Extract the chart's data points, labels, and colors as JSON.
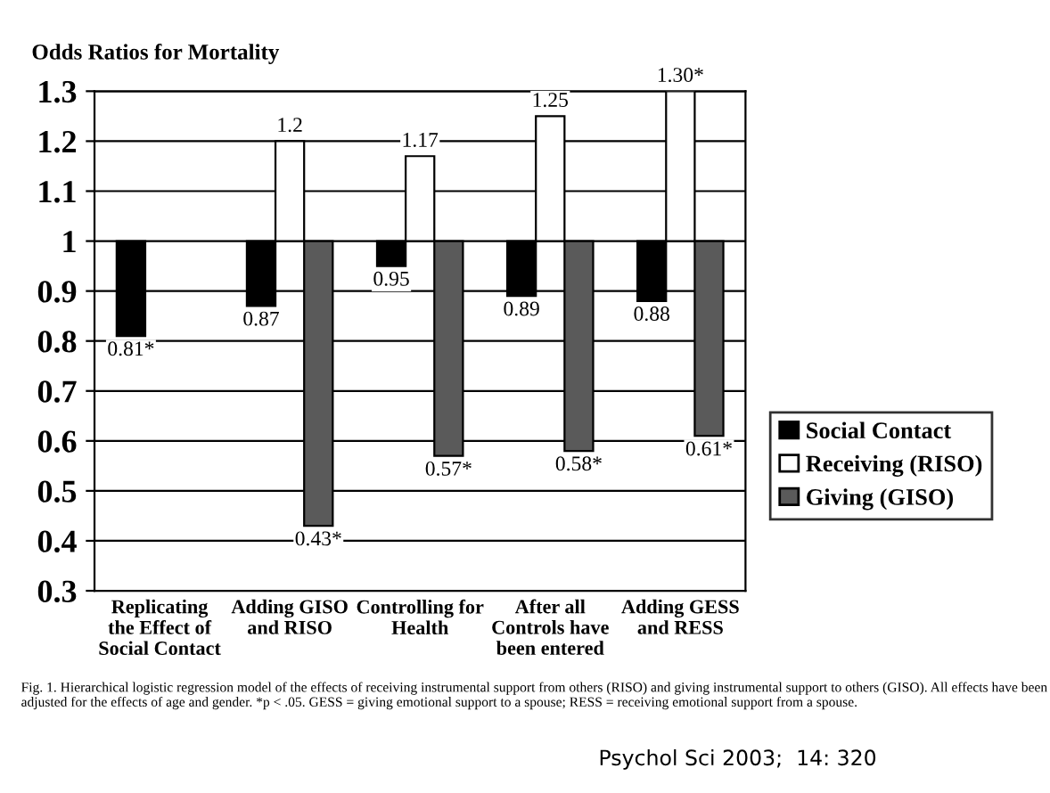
{
  "chart_data": {
    "type": "bar",
    "title": "Odds Ratios for Mortality",
    "categories": [
      "Replicating\nthe Effect of\nSocial Contact",
      "Adding GISO\nand RISO",
      "Controlling for\nHealth",
      "After all\nControls have\nbeen entered",
      "Adding GESS\nand RESS"
    ],
    "series": [
      {
        "name": "Social Contact",
        "color": "#000000",
        "base": [
          1,
          1,
          1,
          1,
          1
        ],
        "values": [
          -0.19,
          -0.13,
          -0.05,
          -0.11,
          -0.12
        ],
        "value_labels": [
          "0.81*",
          "0.87",
          "0.95",
          "0.89",
          "0.88"
        ]
      },
      {
        "name": "Receiving (RISO)",
        "color": "#ffffff",
        "base": [
          null,
          1,
          1,
          1,
          1
        ],
        "values": [
          null,
          0.2,
          0.17,
          0.25,
          0.3
        ],
        "value_labels": [
          null,
          "1.2",
          "1.17",
          "1.25",
          "1.30*"
        ]
      },
      {
        "name": "Giving (GISO)",
        "color": "#5a5a5a",
        "base": [
          null,
          1,
          1,
          1,
          1
        ],
        "values": [
          null,
          -0.57,
          -0.43,
          -0.42,
          -0.39
        ],
        "value_labels": [
          null,
          "0.43*",
          "0.57*",
          "0.58*",
          "0.61*"
        ]
      }
    ],
    "ylim": [
      0.3,
      1.3
    ],
    "yticks": [
      0.3,
      0.4,
      0.5,
      0.6,
      0.7,
      0.8,
      0.9,
      1,
      1.1,
      1.2,
      1.3
    ],
    "grid": "y",
    "legend": "right",
    "annotations": [
      "Fig. 1. Hierarchical logistic regression model of the effects of receiving instrumental support from others (RISO) and giving instrumental support to others (GISO). All effects have been adjusted for the effects of age and gender. *p < .05. GESS = giving emotional support to a spouse; RESS = receiving emotional support from a spouse.",
      "Psychol Sci 2003;  14: 320"
    ]
  }
}
